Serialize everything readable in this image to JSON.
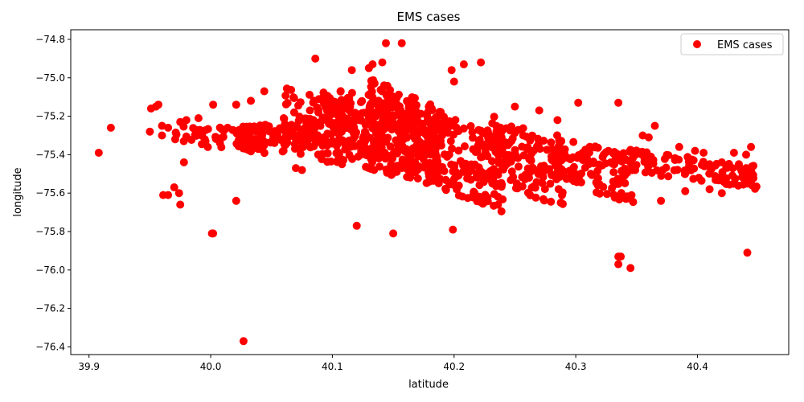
{
  "chart_data": {
    "type": "scatter",
    "title": "EMS cases",
    "xlabel": "latitude",
    "ylabel": "longitude",
    "xlim": [
      39.885,
      40.475
    ],
    "ylim": [
      -76.44,
      -74.75
    ],
    "xticks": [
      39.9,
      40.0,
      40.1,
      40.2,
      40.3,
      40.4
    ],
    "xtick_labels": [
      "39.9",
      "40.0",
      "40.1",
      "40.2",
      "40.3",
      "40.4"
    ],
    "yticks": [
      -74.8,
      -75.0,
      -75.2,
      -75.4,
      -75.6,
      -75.8,
      -76.0,
      -76.2,
      -76.4
    ],
    "ytick_labels": [
      "−74.8",
      "−75.0",
      "−75.2",
      "−75.4",
      "−75.6",
      "−75.8",
      "−76.0",
      "−76.2",
      "−76.4"
    ],
    "grid": false,
    "legend": {
      "position": "top-right",
      "entries": [
        "EMS cases"
      ]
    },
    "series": [
      {
        "name": "EMS cases",
        "color": "#ff0000",
        "points": [
          [
            39.908,
            -75.39
          ],
          [
            39.918,
            -75.26
          ],
          [
            39.951,
            -75.16
          ],
          [
            39.955,
            -75.15
          ],
          [
            39.957,
            -75.14
          ],
          [
            39.95,
            -75.28
          ],
          [
            39.96,
            -75.25
          ],
          [
            39.965,
            -75.26
          ],
          [
            39.96,
            -75.3
          ],
          [
            39.961,
            -75.61
          ],
          [
            39.965,
            -75.61
          ],
          [
            39.97,
            -75.57
          ],
          [
            39.974,
            -75.6
          ],
          [
            39.975,
            -75.66
          ],
          [
            39.978,
            -75.44
          ],
          [
            39.975,
            -75.23
          ],
          [
            39.98,
            -75.22
          ],
          [
            39.99,
            -75.21
          ],
          [
            40.001,
            -75.81
          ],
          [
            40.002,
            -75.81
          ],
          [
            40.002,
            -75.14
          ],
          [
            40.021,
            -75.64
          ],
          [
            40.021,
            -75.14
          ],
          [
            40.027,
            -76.37
          ],
          [
            40.033,
            -75.12
          ],
          [
            40.044,
            -75.07
          ],
          [
            40.06,
            -75.21
          ],
          [
            40.07,
            -75.47
          ],
          [
            40.075,
            -75.48
          ],
          [
            40.086,
            -74.9
          ],
          [
            40.116,
            -74.96
          ],
          [
            40.12,
            -75.77
          ],
          [
            40.13,
            -74.95
          ],
          [
            40.133,
            -74.93
          ],
          [
            40.141,
            -74.92
          ],
          [
            40.144,
            -74.82
          ],
          [
            40.157,
            -74.82
          ],
          [
            40.15,
            -75.81
          ],
          [
            40.198,
            -74.96
          ],
          [
            40.199,
            -75.79
          ],
          [
            40.2,
            -75.02
          ],
          [
            40.208,
            -74.93
          ],
          [
            40.222,
            -74.92
          ],
          [
            40.25,
            -75.15
          ],
          [
            40.27,
            -75.17
          ],
          [
            40.285,
            -75.22
          ],
          [
            40.302,
            -75.13
          ],
          [
            40.335,
            -75.13
          ],
          [
            40.335,
            -75.93
          ],
          [
            40.337,
            -75.93
          ],
          [
            40.335,
            -75.97
          ],
          [
            40.345,
            -75.99
          ],
          [
            40.355,
            -75.3
          ],
          [
            40.36,
            -75.31
          ],
          [
            40.365,
            -75.25
          ],
          [
            40.385,
            -75.36
          ],
          [
            40.398,
            -75.38
          ],
          [
            40.405,
            -75.39
          ],
          [
            40.41,
            -75.45
          ],
          [
            40.42,
            -75.44
          ],
          [
            40.43,
            -75.39
          ],
          [
            40.44,
            -75.4
          ],
          [
            40.444,
            -75.36
          ],
          [
            40.44,
            -75.47
          ],
          [
            40.444,
            -75.53
          ],
          [
            40.441,
            -75.55
          ],
          [
            40.441,
            -75.91
          ],
          [
            40.42,
            -75.6
          ],
          [
            40.41,
            -75.58
          ],
          [
            40.39,
            -75.59
          ],
          [
            40.37,
            -75.64
          ]
        ],
        "dense_regions": [
          {
            "x": [
              39.97,
              40.06
            ],
            "y_center": [
              -75.3,
              -75.32
            ],
            "y_halfwidth": 0.055
          },
          {
            "x": [
              40.02,
              40.09
            ],
            "y_center": [
              -75.31,
              -75.33
            ],
            "y_halfwidth": 0.075
          },
          {
            "x": [
              40.06,
              40.12
            ],
            "y_center": [
              -75.18,
              -75.26
            ],
            "y_halfwidth": 0.13
          },
          {
            "x": [
              40.09,
              40.17
            ],
            "y_center": [
              -75.24,
              -75.33
            ],
            "y_halfwidth": 0.2
          },
          {
            "x": [
              40.13,
              40.19
            ],
            "y_center": [
              -75.18,
              -75.36
            ],
            "y_halfwidth": 0.2
          },
          {
            "x": [
              40.17,
              40.24
            ],
            "y_center": [
              -75.33,
              -75.5
            ],
            "y_halfwidth": 0.2
          },
          {
            "x": [
              40.23,
              40.29
            ],
            "y_center": [
              -75.36,
              -75.52
            ],
            "y_halfwidth": 0.17
          },
          {
            "x": [
              40.28,
              40.35
            ],
            "y_center": [
              -75.4,
              -75.55
            ],
            "y_halfwidth": 0.12
          },
          {
            "x": [
              40.33,
              40.45
            ],
            "y_center": [
              -75.42,
              -75.52
            ],
            "y_halfwidth": 0.06
          }
        ]
      }
    ]
  }
}
